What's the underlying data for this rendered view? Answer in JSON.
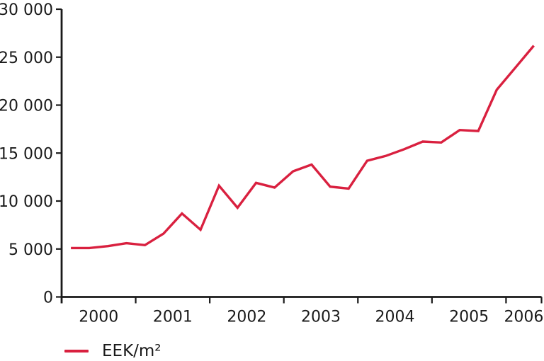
{
  "chart_data": {
    "type": "line",
    "title": "",
    "xlabel": "",
    "ylabel": "",
    "grid": false,
    "legend_position": "bottom-left",
    "legend": "EEK/m²",
    "line_color": "#d9203f",
    "axis_color": "#1a1a1a",
    "ylim": [
      0,
      30000
    ],
    "ytick_values": [
      0,
      5000,
      10000,
      15000,
      20000,
      25000,
      30000
    ],
    "ytick_labels": [
      "0",
      "5 000",
      "10 000",
      "15 000",
      "20 000",
      "25 000",
      "30 000"
    ],
    "xtick_labels": [
      "2000",
      "2001",
      "2002",
      "2003",
      "2004",
      "2005",
      "2006"
    ],
    "x": [
      "2000 Q1",
      "2000 Q2",
      "2000 Q3",
      "2000 Q4",
      "2001 Q1",
      "2001 Q2",
      "2001 Q3",
      "2001 Q4",
      "2002 Q1",
      "2002 Q2",
      "2002 Q3",
      "2002 Q4",
      "2003 Q1",
      "2003 Q2",
      "2003 Q3",
      "2003 Q4",
      "2004 Q1",
      "2004 Q2",
      "2004 Q3",
      "2004 Q4",
      "2005 Q1",
      "2005 Q2",
      "2005 Q3",
      "2005 Q4",
      "2006 Q1",
      "2006 Q2"
    ],
    "series": [
      {
        "name": "EEK/m²",
        "values": [
          5100,
          5100,
          5300,
          5600,
          5400,
          6600,
          8700,
          7000,
          11600,
          9300,
          11900,
          11400,
          13100,
          13800,
          11500,
          11300,
          14200,
          14700,
          15400,
          16200,
          16100,
          17400,
          17300,
          21600,
          23900,
          26200
        ]
      }
    ]
  }
}
